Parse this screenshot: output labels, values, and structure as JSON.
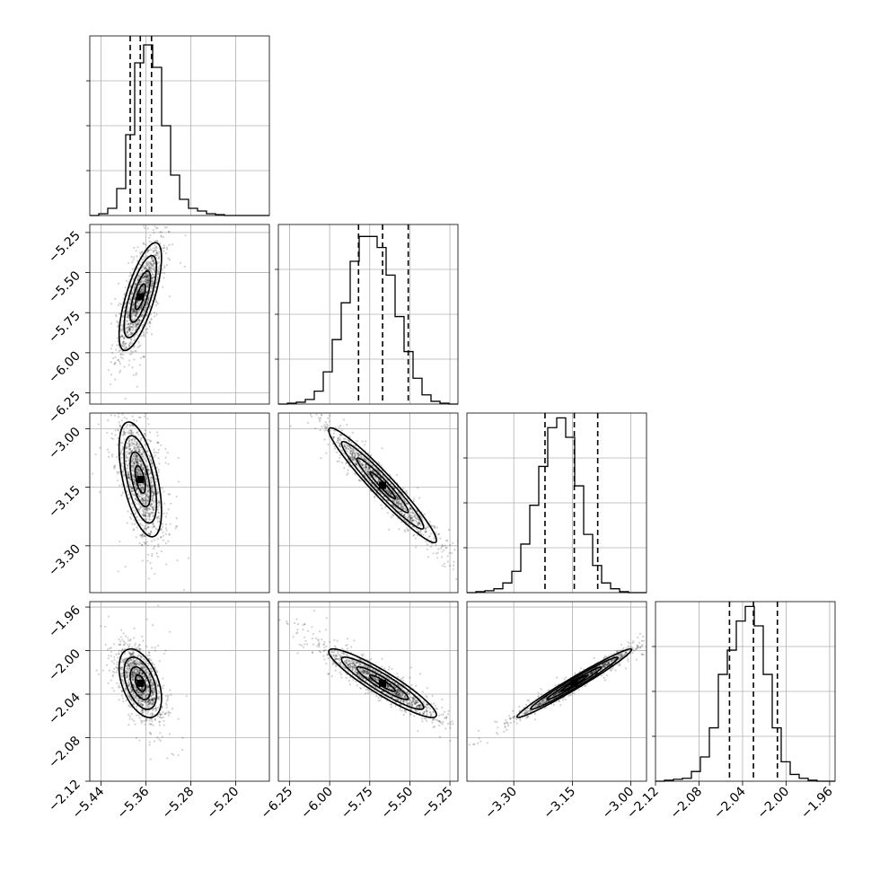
{
  "chart_data": {
    "type": "corner",
    "parameters": [
      {
        "ticks": [
          -5.44,
          -5.36,
          -5.28,
          -5.2
        ],
        "tick_labels": [
          "−5.44",
          "−5.36",
          "−5.28",
          "−5.20"
        ],
        "range": [
          -5.46,
          -5.14
        ]
      },
      {
        "ticks": [
          -6.25,
          -6.0,
          -5.75,
          -5.5,
          -5.25
        ],
        "tick_labels": [
          "−6.25",
          "−6.00",
          "−5.75",
          "−5.50",
          "−5.25"
        ],
        "range": [
          -6.32,
          -5.2
        ]
      },
      {
        "ticks": [
          -3.3,
          -3.15,
          -3.0
        ],
        "tick_labels": [
          "−3.30",
          "−3.15",
          "−3.00"
        ],
        "range": [
          -3.42,
          -2.96
        ]
      },
      {
        "ticks": [
          -2.12,
          -2.08,
          -2.04,
          -2.0,
          -1.96
        ],
        "tick_labels": [
          "−2.12",
          "−2.08",
          "−2.04",
          "−2.00",
          "−1.96"
        ],
        "range": [
          -2.12,
          -1.955
        ]
      }
    ],
    "quantiles": [
      [
        -5.388,
        -5.37,
        -5.35
      ],
      [
        -5.82,
        -5.67,
        -5.51
      ],
      [
        -3.22,
        -3.145,
        -3.085
      ],
      [
        -2.052,
        -2.03,
        -2.008
      ]
    ],
    "histograms": [
      {
        "counts": [
          0,
          2,
          8,
          30,
          90,
          170,
          190,
          165,
          100,
          45,
          18,
          8,
          5,
          2,
          1,
          0,
          0,
          0,
          0,
          0
        ],
        "max": 200
      },
      {
        "counts": [
          0,
          1,
          2,
          5,
          14,
          35,
          70,
          110,
          155,
          182,
          182,
          170,
          140,
          95,
          57,
          28,
          10,
          3,
          1,
          0
        ],
        "max": 195
      },
      {
        "counts": [
          0,
          1,
          2,
          4,
          10,
          22,
          50,
          90,
          130,
          170,
          180,
          160,
          110,
          60,
          28,
          10,
          4,
          1,
          0,
          0
        ],
        "max": 185
      },
      {
        "counts": [
          0,
          1,
          2,
          3,
          10,
          25,
          55,
          110,
          135,
          165,
          180,
          160,
          110,
          55,
          20,
          7,
          3,
          1,
          0,
          0
        ],
        "max": 185
      }
    ],
    "pairs": [
      {
        "i": 1,
        "j": 0,
        "center": [
          -5.37,
          -5.65
        ],
        "sd": [
          0.018,
          0.16
        ],
        "corr": 0.72
      },
      {
        "i": 2,
        "j": 0,
        "center": [
          -5.37,
          -3.13
        ],
        "sd": [
          0.018,
          0.07
        ],
        "corr": -0.55
      },
      {
        "i": 2,
        "j": 1,
        "center": [
          -5.67,
          -3.145
        ],
        "sd": [
          0.16,
          0.07
        ],
        "corr": -0.96
      },
      {
        "i": 3,
        "j": 0,
        "center": [
          -5.37,
          -2.03
        ],
        "sd": [
          0.018,
          0.015
        ],
        "corr": -0.45
      },
      {
        "i": 3,
        "j": 1,
        "center": [
          -5.67,
          -2.03
        ],
        "sd": [
          0.16,
          0.015
        ],
        "corr": -0.92
      },
      {
        "i": 3,
        "j": 2,
        "center": [
          -3.145,
          -2.03
        ],
        "sd": [
          0.07,
          0.015
        ],
        "corr": 0.98
      }
    ],
    "grid": true,
    "contour_levels": [
      0.5,
      1.0,
      1.6,
      2.1
    ]
  }
}
